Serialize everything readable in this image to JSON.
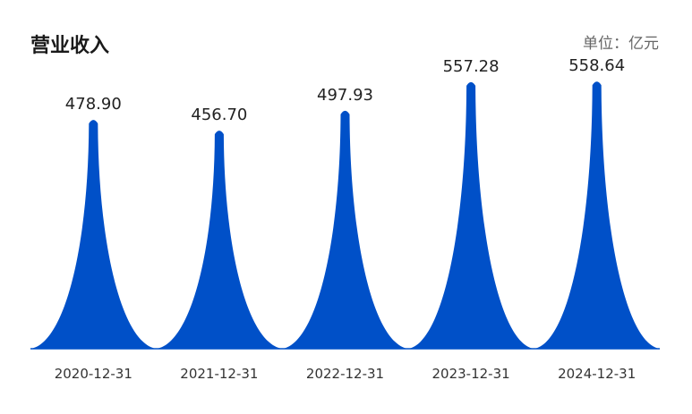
{
  "header": {
    "title": "营业收入",
    "unit": "单位：亿元"
  },
  "colors": {
    "bar": "#0050c8",
    "baseline": "#0050c8"
  },
  "chart_data": {
    "type": "bar",
    "style": "pictorial-peak",
    "categories": [
      "2020-12-31",
      "2021-12-31",
      "2022-12-31",
      "2023-12-31",
      "2024-12-31"
    ],
    "values": [
      478.9,
      456.7,
      497.93,
      557.28,
      558.64
    ],
    "value_labels": [
      "478.90",
      "456.70",
      "497.93",
      "557.28",
      "558.64"
    ],
    "title": "营业收入",
    "unit": "单位：亿元",
    "xlabel": "",
    "ylabel": "",
    "ylim": [
      0,
      650
    ],
    "grid": false,
    "legend": "none"
  }
}
